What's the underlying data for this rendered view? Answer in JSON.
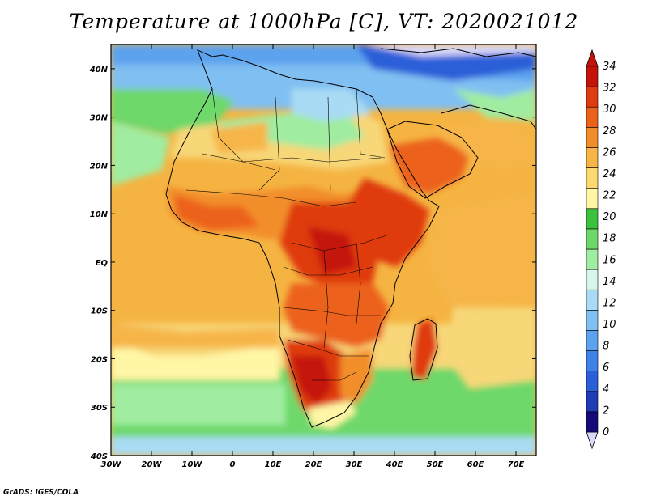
{
  "title": "Temperature at 1000hPa [C], VT: 2020021012",
  "credit": "GrADS: IGES/COLA",
  "map": {
    "region": "Africa",
    "lon_range": [
      -30,
      75
    ],
    "lat_range": [
      -40,
      45
    ],
    "lon_ticks": [
      "30W",
      "20W",
      "10W",
      "0",
      "10E",
      "20E",
      "30E",
      "40E",
      "50E",
      "60E",
      "70E"
    ],
    "lat_ticks": [
      "40N",
      "30N",
      "20N",
      "10N",
      "EQ",
      "10S",
      "20S",
      "30S",
      "40S"
    ]
  },
  "colorbar": {
    "labels": [
      "34",
      "32",
      "30",
      "28",
      "26",
      "24",
      "22",
      "20",
      "18",
      "16",
      "14",
      "12",
      "10",
      "8",
      "6",
      "4",
      "2",
      "0"
    ],
    "colors": [
      "#140a78",
      "#1e3cb4",
      "#2b5fd8",
      "#3f81e8",
      "#5ca2ee",
      "#80bff2",
      "#a9dcf4",
      "#d8f6ea",
      "#a0eca0",
      "#6ed86a",
      "#3cc13c",
      "#fff6a6",
      "#fbd870",
      "#f7b548",
      "#f28e2a",
      "#ec621a",
      "#df3a10",
      "#c4140a"
    ]
  }
}
